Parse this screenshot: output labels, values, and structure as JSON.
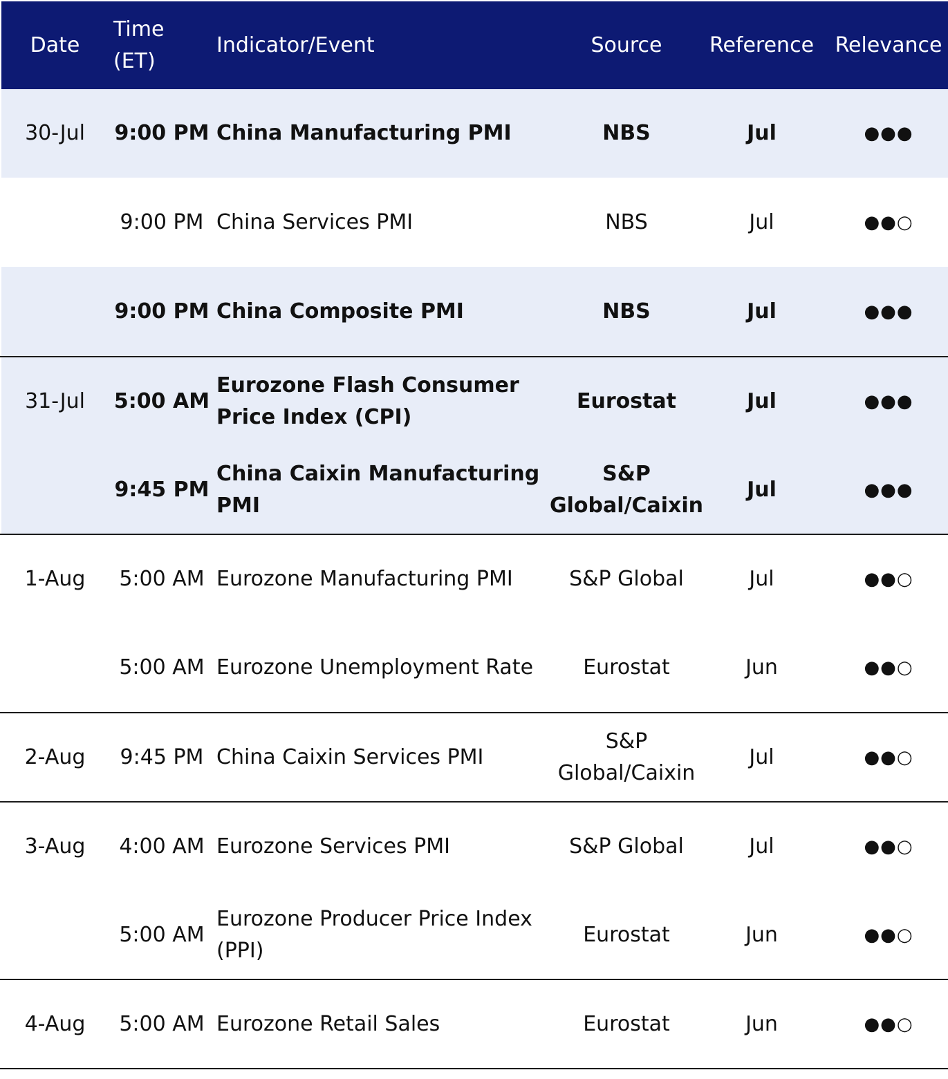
{
  "columns": {
    "date": "Date",
    "time": "Time (ET)",
    "event": "Indicator/Event",
    "source": "Source",
    "reference": "Reference",
    "relevance": "Relevance"
  },
  "rows": [
    {
      "date": "30-Jul",
      "time": "9:00 PM",
      "event": "China Manufacturing PMI",
      "source": "NBS",
      "reference": "Jul",
      "relevance": "●●●"
    },
    {
      "date": "",
      "time": "9:00 PM",
      "event": "China Services PMI",
      "source": "NBS",
      "reference": "Jul",
      "relevance": "●●○"
    },
    {
      "date": "",
      "time": "9:00 PM",
      "event": "China Composite PMI",
      "source": "NBS",
      "reference": "Jul",
      "relevance": "●●●"
    },
    {
      "date": "31-Jul",
      "time": "5:00 AM",
      "event": "Eurozone Flash Consumer Price Index (CPI)",
      "source": "Eurostat",
      "reference": "Jul",
      "relevance": "●●●"
    },
    {
      "date": "",
      "time": "9:45 PM",
      "event": "China Caixin Manufacturing PMI",
      "source": "S&P Global/Caixin",
      "reference": "Jul",
      "relevance": "●●●"
    },
    {
      "date": "1-Aug",
      "time": "5:00 AM",
      "event": "Eurozone Manufacturing PMI",
      "source": "S&P Global",
      "reference": "Jul",
      "relevance": "●●○"
    },
    {
      "date": "",
      "time": "5:00 AM",
      "event": "Eurozone Unemployment Rate",
      "source": "Eurostat",
      "reference": "Jun",
      "relevance": "●●○"
    },
    {
      "date": "2-Aug",
      "time": "9:45 PM",
      "event": "China Caixin Services PMI",
      "source": "S&P Global/Caixin",
      "reference": "Jul",
      "relevance": "●●○"
    },
    {
      "date": "3-Aug",
      "time": "4:00 AM",
      "event": "Eurozone Services PMI",
      "source": "S&P Global",
      "reference": "Jul",
      "relevance": "●●○"
    },
    {
      "date": "",
      "time": "5:00 AM",
      "event": "Eurozone Producer Price Index (PPI)",
      "source": "Eurostat",
      "reference": "Jun",
      "relevance": "●●○"
    },
    {
      "date": "4-Aug",
      "time": "5:00 AM",
      "event": "Eurozone Retail Sales",
      "source": "Eurostat",
      "reference": "Jun",
      "relevance": "●●○"
    }
  ],
  "colors": {
    "header_background": "#0d1a73",
    "shaded_row": "#e8edf8",
    "rule": "#1a1a1a"
  }
}
